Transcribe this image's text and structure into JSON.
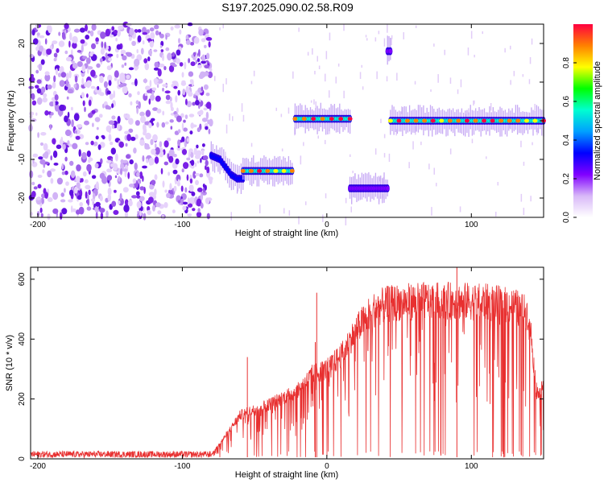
{
  "title": "S197.2025.090.02.58.R09",
  "chart_data": [
    {
      "type": "heatmap",
      "xlabel": "Height of straight line (km)",
      "ylabel": "Frequency (Hz)",
      "xlim": [
        -205,
        150
      ],
      "ylim": [
        -25,
        25
      ],
      "xticks": [
        -200,
        -100,
        0,
        100
      ],
      "yticks": [
        20,
        10,
        0,
        -10,
        -20
      ],
      "colorbar": {
        "label": "Normalized spectral amplitude",
        "range": [
          0,
          1
        ],
        "ticks": [
          0.0,
          0.2,
          0.4,
          0.6,
          0.8
        ],
        "colormap": [
          "#ffffff",
          "#d8b8f8",
          "#8000ff",
          "#0000ff",
          "#00a0ff",
          "#00ffd0",
          "#00ff00",
          "#ffff00",
          "#ff8000",
          "#ff0040"
        ]
      },
      "noise_region": {
        "x": [
          -205,
          -80
        ],
        "y": [
          -25,
          25
        ]
      },
      "ridges": [
        {
          "x": [
            -80,
            -74,
            -70,
            -66,
            -62,
            -58
          ],
          "y": [
            -9,
            -10,
            -12,
            -14,
            -15,
            -15
          ],
          "amplitude": 0.3
        },
        {
          "x": [
            -58,
            -24
          ],
          "y": [
            -13,
            -13
          ],
          "amplitude": 0.85
        },
        {
          "x": [
            -22,
            16
          ],
          "y": [
            0.5,
            0.5
          ],
          "amplitude": 0.9
        },
        {
          "x": [
            16,
            42
          ],
          "y": [
            -17.5,
            -17.5
          ],
          "amplitude": 0.25
        },
        {
          "x": [
            42,
            44
          ],
          "y": [
            18,
            18
          ],
          "amplitude": 0.2
        },
        {
          "x": [
            44,
            150
          ],
          "y": [
            0,
            0
          ],
          "amplitude": 0.9
        }
      ]
    },
    {
      "type": "line",
      "xlabel": "Height of straight line (km)",
      "ylabel": "SNR (10 * v/v)",
      "xlim": [
        -205,
        150
      ],
      "ylim": [
        0,
        640
      ],
      "xticks": [
        -200,
        -100,
        0,
        100
      ],
      "yticks": [
        0,
        200,
        400,
        600
      ],
      "line_color": "#e83030",
      "profile": {
        "x": [
          -205,
          -80,
          -72,
          -60,
          -40,
          -20,
          -10,
          0,
          10,
          20,
          30,
          40,
          50,
          70,
          90,
          110,
          130,
          140,
          145,
          150
        ],
        "y": [
          15,
          15,
          70,
          160,
          200,
          250,
          310,
          330,
          380,
          470,
          540,
          565,
          575,
          580,
          580,
          575,
          560,
          530,
          250,
          260
        ]
      },
      "spikes": [
        {
          "x": -55,
          "y": 340
        },
        {
          "x": -8,
          "y": 390
        },
        {
          "x": -7,
          "y": 555
        },
        {
          "x": 90,
          "y": 640
        }
      ]
    }
  ]
}
